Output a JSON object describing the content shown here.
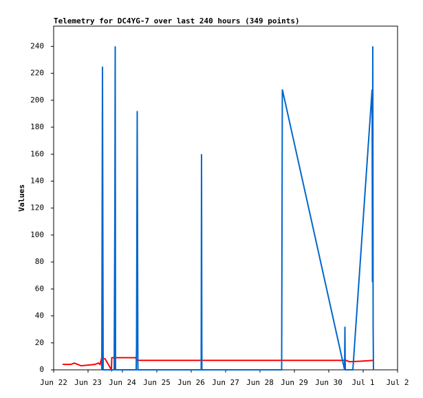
{
  "chart_data": {
    "type": "line",
    "title": "Telemetry for DC4YG-7 over last 240 hours (349 points)",
    "y_label": "Values",
    "xlim": [
      0,
      10
    ],
    "xticks": [
      {
        "value": 0,
        "label": "Jun 22"
      },
      {
        "value": 1,
        "label": "Jun 23"
      },
      {
        "value": 2,
        "label": "Jun 24"
      },
      {
        "value": 3,
        "label": "Jun 25"
      },
      {
        "value": 4,
        "label": "Jun 26"
      },
      {
        "value": 5,
        "label": "Jun 27"
      },
      {
        "value": 6,
        "label": "Jun 28"
      },
      {
        "value": 7,
        "label": "Jun 29"
      },
      {
        "value": 8,
        "label": "Jun 30"
      },
      {
        "value": 9,
        "label": "Jul 1"
      },
      {
        "value": 10,
        "label": "Jul 2"
      }
    ],
    "ylim": [
      0,
      255
    ],
    "yticks": [
      0,
      20,
      40,
      60,
      80,
      100,
      120,
      140,
      160,
      180,
      200,
      220,
      240
    ],
    "grid": false,
    "series": [
      {
        "color": "#0066cc",
        "x": [
          1.4,
          1.42,
          1.44,
          1.76,
          1.78,
          1.79,
          1.8,
          2.4,
          2.41,
          2.43,
          2.45,
          4.29,
          4.3,
          4.31,
          6.63,
          6.64,
          6.65,
          8.46,
          8.47,
          8.48,
          8.7,
          9.26,
          9.27,
          9.28,
          9.29,
          9.3
        ],
        "values": [
          0,
          225,
          0,
          0,
          120,
          240,
          0,
          0,
          17,
          192,
          0,
          0,
          160,
          0,
          0,
          104,
          208,
          0,
          32,
          0,
          0,
          208,
          65,
          240,
          32,
          0
        ]
      },
      {
        "color": "#ff0000",
        "x": [
          0.26,
          0.5,
          0.6,
          0.7,
          0.8,
          1.2,
          1.3,
          1.35,
          1.4,
          1.5,
          1.68,
          1.69,
          2.38,
          2.42,
          8.5,
          8.6,
          9.0,
          9.3
        ],
        "values": [
          4,
          4,
          5,
          4,
          3,
          4,
          5,
          4,
          9,
          8,
          0,
          9,
          9,
          7,
          7,
          6,
          6.5,
          7
        ]
      }
    ]
  }
}
